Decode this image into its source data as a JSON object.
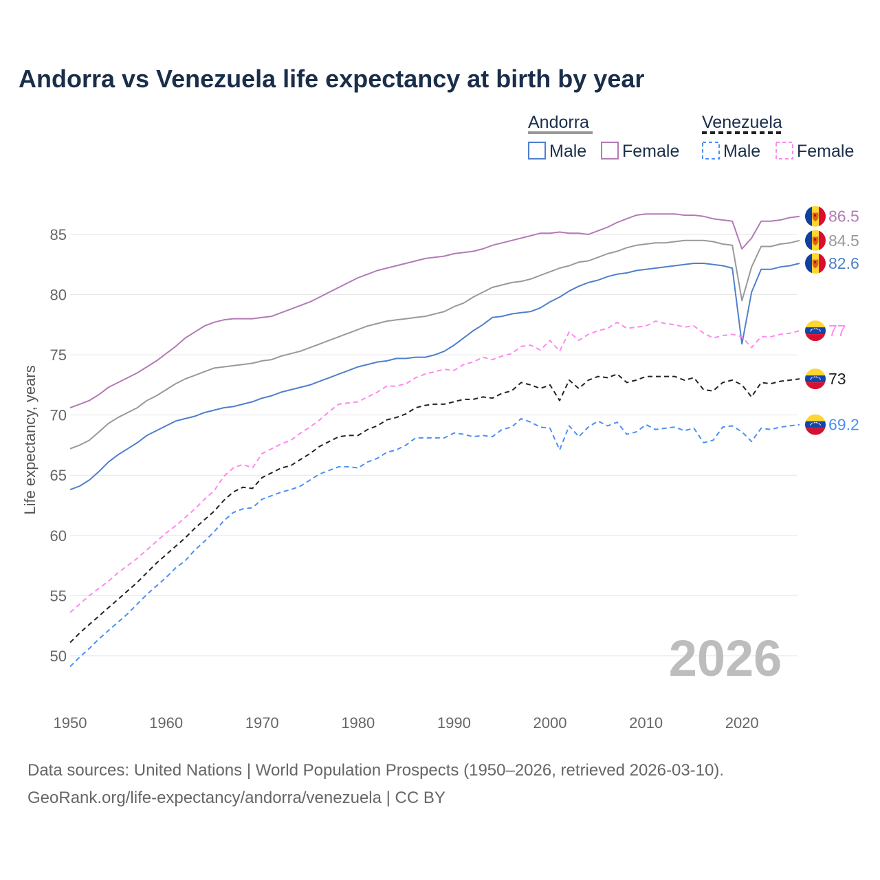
{
  "chart_data": {
    "type": "line",
    "title": "Andorra vs Venezuela life expectancy at birth by year",
    "xlabel": "",
    "ylabel": "Life expectancy, years",
    "xlim": [
      1950,
      2026
    ],
    "ylim": [
      47,
      88
    ],
    "grid": true,
    "x_ticks": [
      "1950",
      "1960",
      "1970",
      "1980",
      "1990",
      "2000",
      "2010",
      "2020"
    ],
    "y_ticks": [
      "50",
      "55",
      "60",
      "65",
      "70",
      "75",
      "80",
      "85"
    ],
    "year_watermark": "2026",
    "legend": {
      "placement": "top-right",
      "groups": [
        {
          "label": "Andorra",
          "items": [
            "Male",
            "Female"
          ]
        },
        {
          "label": "Venezuela",
          "items": [
            "Male",
            "Female"
          ]
        }
      ]
    },
    "x_start": 1950,
    "series": [
      {
        "name": "Andorra Female",
        "country": "Andorra",
        "color": "#b37ab5",
        "dashed": false,
        "end_label": "86.5",
        "values": [
          70.6,
          70.9,
          71.2,
          71.7,
          72.3,
          72.7,
          73.1,
          73.5,
          74.0,
          74.5,
          75.1,
          75.7,
          76.4,
          76.9,
          77.4,
          77.7,
          77.9,
          78.0,
          78.0,
          78.0,
          78.1,
          78.2,
          78.5,
          78.8,
          79.1,
          79.4,
          79.8,
          80.2,
          80.6,
          81.0,
          81.4,
          81.7,
          82.0,
          82.2,
          82.4,
          82.6,
          82.8,
          83.0,
          83.1,
          83.2,
          83.4,
          83.5,
          83.6,
          83.8,
          84.1,
          84.3,
          84.5,
          84.7,
          84.9,
          85.1,
          85.1,
          85.2,
          85.1,
          85.1,
          85.0,
          85.3,
          85.6,
          86.0,
          86.3,
          86.6,
          86.7,
          86.7,
          86.7,
          86.7,
          86.6,
          86.6,
          86.5,
          86.3,
          86.2,
          86.1,
          83.8,
          84.7,
          86.1,
          86.1,
          86.2,
          86.4,
          86.5
        ]
      },
      {
        "name": "Andorra Total",
        "country": "Andorra",
        "color": "#999999",
        "dashed": false,
        "end_label": "84.5",
        "values": [
          67.2,
          67.5,
          67.9,
          68.6,
          69.3,
          69.8,
          70.2,
          70.6,
          71.2,
          71.6,
          72.1,
          72.6,
          73.0,
          73.3,
          73.6,
          73.9,
          74.0,
          74.1,
          74.2,
          74.3,
          74.5,
          74.6,
          74.9,
          75.1,
          75.3,
          75.6,
          75.9,
          76.2,
          76.5,
          76.8,
          77.1,
          77.4,
          77.6,
          77.8,
          77.9,
          78.0,
          78.1,
          78.2,
          78.4,
          78.6,
          79.0,
          79.3,
          79.8,
          80.2,
          80.6,
          80.8,
          81.0,
          81.1,
          81.3,
          81.6,
          81.9,
          82.2,
          82.4,
          82.7,
          82.8,
          83.1,
          83.4,
          83.6,
          83.9,
          84.1,
          84.2,
          84.3,
          84.3,
          84.4,
          84.5,
          84.5,
          84.5,
          84.4,
          84.2,
          84.1,
          79.5,
          82.3,
          84.0,
          84.0,
          84.2,
          84.3,
          84.5
        ]
      },
      {
        "name": "Andorra Male",
        "country": "Andorra",
        "color": "#4f7fcc",
        "dashed": false,
        "end_label": "82.6",
        "values": [
          63.8,
          64.1,
          64.6,
          65.3,
          66.1,
          66.7,
          67.2,
          67.7,
          68.3,
          68.7,
          69.1,
          69.5,
          69.7,
          69.9,
          70.2,
          70.4,
          70.6,
          70.7,
          70.9,
          71.1,
          71.4,
          71.6,
          71.9,
          72.1,
          72.3,
          72.5,
          72.8,
          73.1,
          73.4,
          73.7,
          74.0,
          74.2,
          74.4,
          74.5,
          74.7,
          74.7,
          74.8,
          74.8,
          75.0,
          75.3,
          75.8,
          76.4,
          77.0,
          77.5,
          78.1,
          78.2,
          78.4,
          78.5,
          78.6,
          78.9,
          79.4,
          79.8,
          80.3,
          80.7,
          81.0,
          81.2,
          81.5,
          81.7,
          81.8,
          82.0,
          82.1,
          82.2,
          82.3,
          82.4,
          82.5,
          82.6,
          82.6,
          82.5,
          82.4,
          82.2,
          75.9,
          80.2,
          82.1,
          82.1,
          82.3,
          82.4,
          82.6
        ]
      },
      {
        "name": "Venezuela Female",
        "country": "Venezuela",
        "color": "#ff88ee",
        "dashed": true,
        "end_label": "77",
        "values": [
          53.6,
          54.3,
          55.0,
          55.6,
          56.2,
          56.9,
          57.5,
          58.1,
          58.8,
          59.5,
          60.2,
          60.8,
          61.5,
          62.2,
          63.0,
          63.7,
          64.9,
          65.6,
          65.9,
          65.6,
          66.8,
          67.2,
          67.6,
          67.9,
          68.5,
          69.0,
          69.6,
          70.3,
          70.9,
          71.0,
          71.1,
          71.5,
          71.9,
          72.4,
          72.4,
          72.6,
          73.1,
          73.4,
          73.6,
          73.8,
          73.7,
          74.2,
          74.4,
          74.8,
          74.6,
          74.9,
          75.1,
          75.7,
          75.8,
          75.4,
          76.2,
          75.3,
          76.9,
          76.2,
          76.7,
          77.0,
          77.2,
          77.7,
          77.2,
          77.3,
          77.4,
          77.8,
          77.6,
          77.5,
          77.3,
          77.4,
          76.8,
          76.4,
          76.6,
          76.7,
          76.5,
          75.6,
          76.5,
          76.5,
          76.7,
          76.8,
          77.0
        ]
      },
      {
        "name": "Venezuela Total",
        "country": "Venezuela",
        "color": "#222222",
        "dashed": true,
        "end_label": "73",
        "values": [
          51.1,
          51.9,
          52.6,
          53.3,
          54.0,
          54.7,
          55.4,
          56.1,
          56.9,
          57.7,
          58.4,
          59.1,
          59.8,
          60.6,
          61.3,
          62.0,
          62.9,
          63.6,
          64.0,
          63.9,
          64.8,
          65.2,
          65.6,
          65.8,
          66.3,
          66.8,
          67.4,
          67.8,
          68.2,
          68.3,
          68.3,
          68.8,
          69.1,
          69.6,
          69.8,
          70.1,
          70.6,
          70.8,
          70.9,
          70.9,
          71.1,
          71.3,
          71.3,
          71.5,
          71.4,
          71.8,
          72.0,
          72.7,
          72.5,
          72.2,
          72.5,
          71.2,
          72.9,
          72.2,
          72.9,
          73.2,
          73.1,
          73.4,
          72.7,
          72.9,
          73.2,
          73.2,
          73.2,
          73.2,
          72.9,
          73.1,
          72.1,
          72.0,
          72.7,
          72.9,
          72.5,
          71.5,
          72.7,
          72.6,
          72.8,
          72.9,
          73.0
        ]
      },
      {
        "name": "Venezuela Male",
        "country": "Venezuela",
        "color": "#4a8ff5",
        "dashed": true,
        "end_label": "69.2",
        "values": [
          49.1,
          49.9,
          50.6,
          51.4,
          52.1,
          52.8,
          53.5,
          54.3,
          55.1,
          55.8,
          56.5,
          57.3,
          57.9,
          58.8,
          59.5,
          60.3,
          61.2,
          61.9,
          62.2,
          62.3,
          63.0,
          63.3,
          63.6,
          63.8,
          64.1,
          64.6,
          65.1,
          65.4,
          65.7,
          65.7,
          65.6,
          66.1,
          66.4,
          66.9,
          67.1,
          67.5,
          68.1,
          68.1,
          68.1,
          68.1,
          68.5,
          68.4,
          68.2,
          68.3,
          68.2,
          68.8,
          69.0,
          69.7,
          69.4,
          69.0,
          68.9,
          67.1,
          69.1,
          68.2,
          69.0,
          69.5,
          69.1,
          69.4,
          68.4,
          68.6,
          69.2,
          68.8,
          68.9,
          69.0,
          68.7,
          68.9,
          67.7,
          67.9,
          69.0,
          69.1,
          68.6,
          67.8,
          68.9,
          68.8,
          69.0,
          69.1,
          69.2
        ]
      }
    ],
    "footer": {
      "line1": "Data sources: United Nations | World Population Prospects (1950–2026, retrieved 2026-03-10).",
      "line2": "GeoRank.org/life-expectancy/andorra/venezuela | CC BY"
    }
  }
}
